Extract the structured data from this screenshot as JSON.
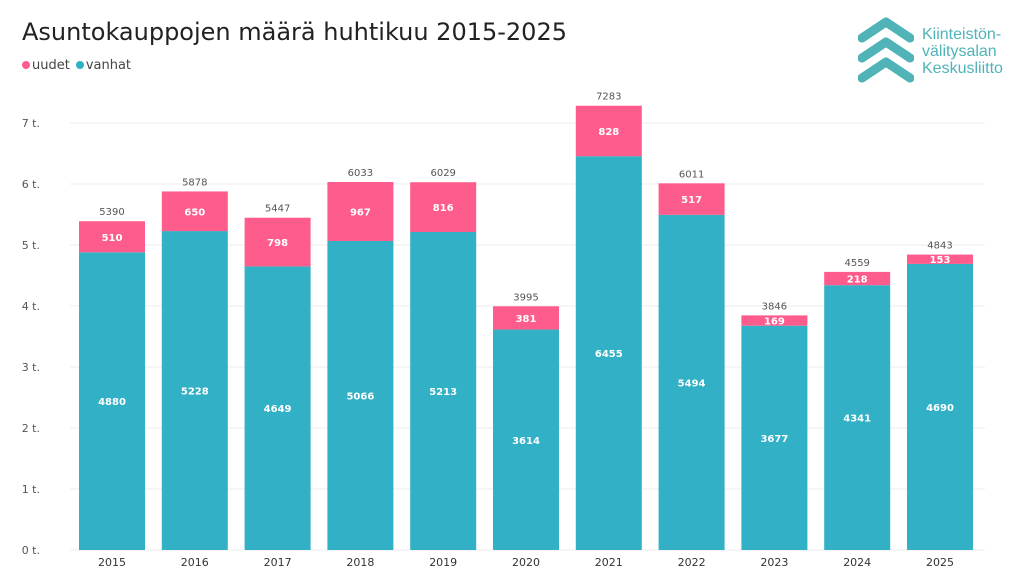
{
  "chart_data": {
    "type": "bar",
    "stacked": true,
    "title": "Asuntokauppojen määrä huhtikuu 2015-2025",
    "xlabel": "",
    "ylabel": "",
    "ylim": [
      0,
      7000
    ],
    "yticks": [
      0,
      1000,
      2000,
      3000,
      4000,
      5000,
      6000,
      7000
    ],
    "ytick_labels": [
      "0 t.",
      "1 t.",
      "2 t.",
      "3 t.",
      "4 t.",
      "5 t.",
      "6 t.",
      "7 t."
    ],
    "grid": true,
    "legend": "top-left",
    "categories": [
      "2015",
      "2016",
      "2017",
      "2018",
      "2019",
      "2020",
      "2021",
      "2022",
      "2023",
      "2024",
      "2025"
    ],
    "series": [
      {
        "name": "vanhat",
        "color": "#31b0c6",
        "values": [
          4880,
          5228,
          4649,
          5066,
          5213,
          3614,
          6455,
          5494,
          3677,
          4341,
          4690
        ]
      },
      {
        "name": "uudet",
        "color": "#fd5c8c",
        "values": [
          510,
          650,
          798,
          967,
          816,
          381,
          828,
          517,
          169,
          218,
          153
        ]
      }
    ],
    "totals": [
      5390,
      5878,
      5447,
      6033,
      6029,
      3995,
      7283,
      6011,
      3846,
      4559,
      4843
    ]
  },
  "logo": {
    "lines": [
      "Kiinteistön-",
      "välitysalan",
      "Keskusliitto"
    ],
    "color": "#4fb3b8"
  }
}
